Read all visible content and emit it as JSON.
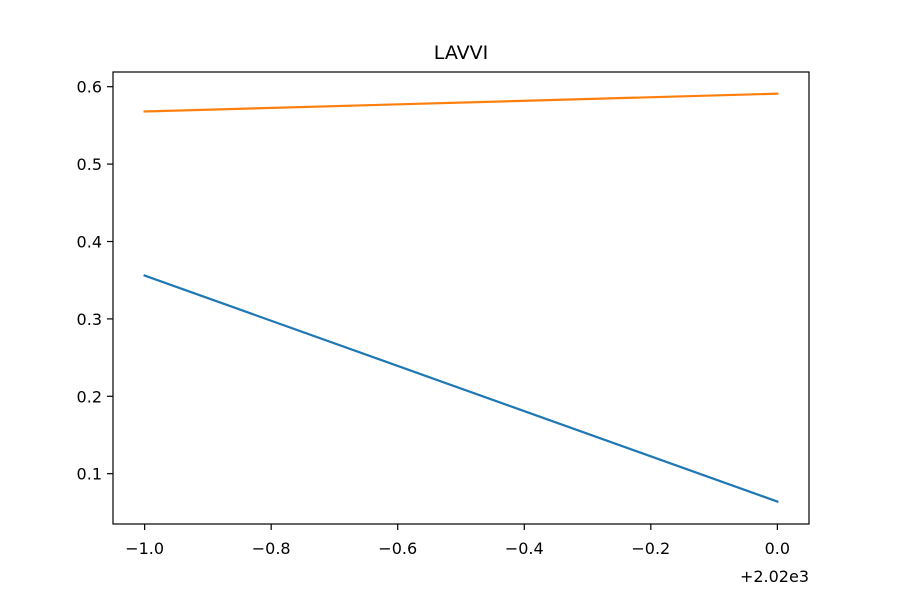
{
  "chart_data": {
    "type": "line",
    "title": "LAVVI",
    "xlabel": "",
    "ylabel": "",
    "x_offset_label": "+2.02e3",
    "x_offset": 2020,
    "x": [
      2019,
      2020
    ],
    "xlim": [
      2018.95,
      2020.05
    ],
    "ylim": [
      0.035,
      0.619
    ],
    "x_ticks": [
      2019.0,
      2019.2,
      2019.4,
      2019.6,
      2019.8,
      2020.0
    ],
    "x_tick_labels": [
      "−1.0",
      "−0.8",
      "−0.6",
      "−0.4",
      "−0.2",
      "0.0"
    ],
    "y_ticks": [
      0.1,
      0.2,
      0.3,
      0.4,
      0.5,
      0.6
    ],
    "y_tick_labels": [
      "0.1",
      "0.2",
      "0.3",
      "0.4",
      "0.5",
      "0.6"
    ],
    "grid": false,
    "series": [
      {
        "values": [
          0.356,
          0.064
        ],
        "color": "#1f77b4"
      },
      {
        "values": [
          0.568,
          0.591
        ],
        "color": "#ff7f0e"
      }
    ]
  }
}
